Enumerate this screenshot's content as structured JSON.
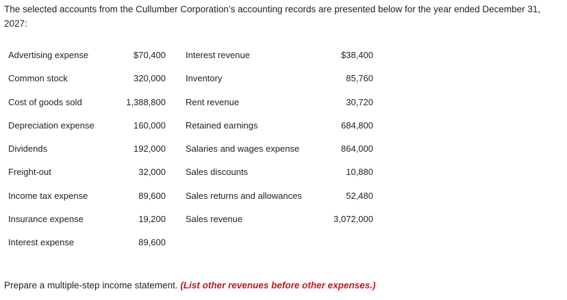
{
  "intro": "The selected accounts from the Cullumber Corporation’s accounting records are presented below for the year ended December 31, 2027:",
  "rows": [
    {
      "left_name": "Advertising expense",
      "left_amount": "$70,400",
      "right_name": "Interest revenue",
      "right_amount": "$38,400"
    },
    {
      "left_name": "Common stock",
      "left_amount": "320,000",
      "right_name": "Inventory",
      "right_amount": "85,760"
    },
    {
      "left_name": "Cost of goods sold",
      "left_amount": "1,388,800",
      "right_name": "Rent revenue",
      "right_amount": "30,720"
    },
    {
      "left_name": "Depreciation expense",
      "left_amount": "160,000",
      "right_name": "Retained earnings",
      "right_amount": "684,800"
    },
    {
      "left_name": "Dividends",
      "left_amount": "192,000",
      "right_name": "Salaries and wages expense",
      "right_amount": "864,000"
    },
    {
      "left_name": "Freight-out",
      "left_amount": "32,000",
      "right_name": "Sales discounts",
      "right_amount": "10,880"
    },
    {
      "left_name": "Income tax expense",
      "left_amount": "89,600",
      "right_name": "Sales returns and allowances",
      "right_amount": "52,480"
    },
    {
      "left_name": "Insurance expense",
      "left_amount": "19,200",
      "right_name": "Sales revenue",
      "right_amount": "3,072,000"
    },
    {
      "left_name": "Interest expense",
      "left_amount": "89,600",
      "right_name": "",
      "right_amount": ""
    }
  ],
  "instruction": {
    "text": "Prepare a multiple-step income statement.",
    "note": "(List other revenues before other expenses.)"
  }
}
